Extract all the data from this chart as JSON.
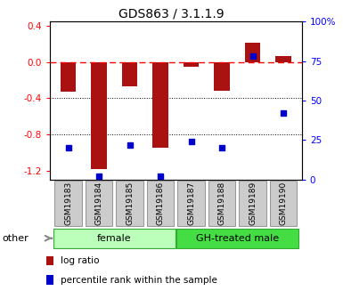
{
  "title": "GDS863 / 3.1.1.9",
  "samples": [
    "GSM19183",
    "GSM19184",
    "GSM19185",
    "GSM19186",
    "GSM19187",
    "GSM19188",
    "GSM19189",
    "GSM19190"
  ],
  "log_ratios": [
    -0.33,
    -1.18,
    -0.27,
    -0.95,
    -0.05,
    -0.32,
    0.22,
    0.07
  ],
  "percentile_ranks": [
    20,
    2,
    22,
    2,
    24,
    20,
    78,
    42
  ],
  "groups": [
    {
      "label": "female",
      "color": "#bbffbb",
      "start": 0,
      "end": 4
    },
    {
      "label": "GH-treated male",
      "color": "#44dd44",
      "start": 4,
      "end": 8
    }
  ],
  "bar_color": "#aa1111",
  "dot_color": "#0000cc",
  "ylim_left": [
    -1.3,
    0.45
  ],
  "ylim_right": [
    0,
    100
  ],
  "yticks_left": [
    0.4,
    0.0,
    -0.4,
    -0.8,
    -1.2
  ],
  "yticks_right": [
    100,
    75,
    50,
    25,
    0
  ],
  "dotted_lines": [
    -0.4,
    -0.8
  ],
  "legend_items": [
    {
      "label": "log ratio",
      "color": "#aa1111"
    },
    {
      "label": "percentile rank within the sample",
      "color": "#0000cc"
    }
  ],
  "other_label": "other",
  "bar_width": 0.5,
  "sample_box_color": "#cccccc",
  "sample_box_edge": "#999999"
}
